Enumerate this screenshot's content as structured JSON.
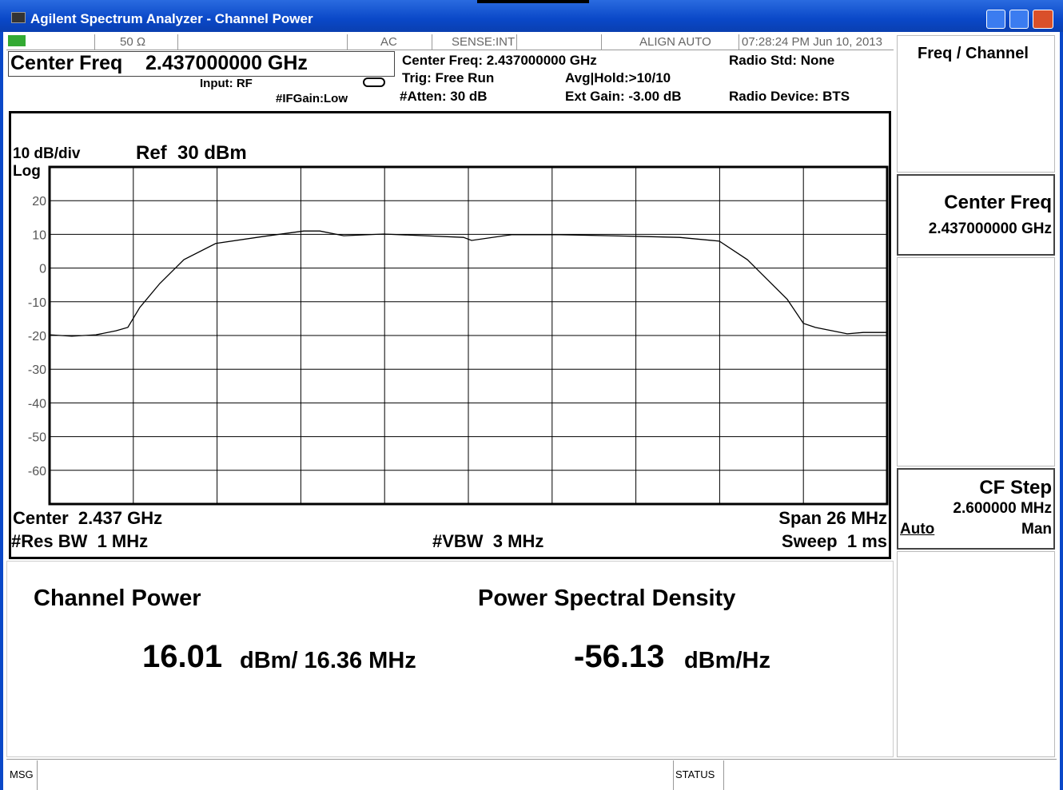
{
  "window": {
    "title": "Agilent Spectrum Analyzer - Channel Power"
  },
  "status_row": [
    "50 Ω",
    "AC",
    "SENSE:INT",
    "ALIGN AUTO",
    "07:28:24 PM Jun 10, 2013"
  ],
  "header": {
    "center_freq_label": "Center Freq",
    "center_freq_value": "2.437000000 GHz",
    "input": "Input: RF",
    "ifgain": "#IFGain:Low",
    "info": [
      "Center Freq: 2.437000000 GHz",
      "Trig: Free Run",
      "#Atten: 30 dB",
      "Avg|Hold:>10/10",
      "Ext Gain: -3.00 dB",
      "Radio Std: None",
      "Radio Device: BTS"
    ]
  },
  "plot": {
    "type": "line",
    "scale_label": "10 dB/div",
    "scale_type": "Log",
    "ref_label": "Ref  30 dBm",
    "ylim": [
      -70,
      30
    ],
    "yticks": [
      20,
      10,
      0,
      -10,
      -20,
      -30,
      -40,
      -50,
      -60
    ],
    "xlim": [
      2424,
      2450
    ],
    "grid": true,
    "color": "#000000",
    "trace": {
      "x": [
        2424.0,
        2424.69,
        2425.44,
        2426.06,
        2426.43,
        2426.8,
        2427.42,
        2428.17,
        2429.16,
        2430.65,
        2431.89,
        2432.39,
        2433.13,
        2434.37,
        2436.85,
        2437.1,
        2438.34,
        2439.83,
        2442.31,
        2443.55,
        2444.79,
        2445.66,
        2446.28,
        2446.9,
        2447.4,
        2447.77,
        2448.76,
        2449.26,
        2450.0
      ],
      "y": [
        -19.8,
        -20.2,
        -19.8,
        -18.6,
        -17.6,
        -11.7,
        -4.6,
        2.5,
        7.3,
        9.4,
        11.0,
        11.0,
        9.6,
        10.1,
        9.1,
        8.2,
        9.9,
        9.9,
        9.4,
        9.1,
        8.0,
        2.5,
        -3.4,
        -9.3,
        -16.4,
        -17.6,
        -19.5,
        -19.1,
        -19.1
      ]
    },
    "footer": {
      "center": "Center  2.437 GHz",
      "res_bw": "#Res BW  1 MHz",
      "vbw": "#VBW  3 MHz",
      "span": "Span 26 MHz",
      "sweep": "Sweep  1 ms"
    }
  },
  "results": {
    "channel_power": {
      "title": "Channel Power",
      "value": "16.01",
      "unit": "dBm/ 16.36 MHz"
    },
    "psd": {
      "title": "Power Spectral Density",
      "value": "-56.13",
      "unit": "dBm/Hz"
    }
  },
  "softkeys": {
    "menu": "Freq / Channel",
    "center_freq": {
      "label": "Center Freq",
      "value": "2.437000000 GHz"
    },
    "cf_step": {
      "label": "CF Step",
      "value": "2.600000 MHz",
      "option_auto": "Auto",
      "option_man": "Man"
    }
  },
  "bottom": {
    "msg": "MSG",
    "status": "STATUS"
  }
}
